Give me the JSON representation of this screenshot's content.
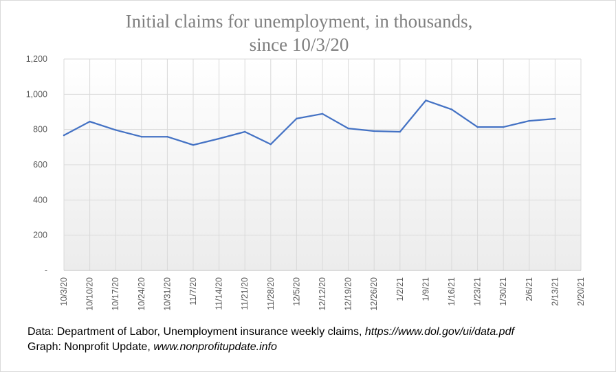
{
  "chart_data": {
    "type": "line",
    "title": "Initial claims for unemployment, in thousands,",
    "subtitle": "since 10/3/20",
    "xlabel": "",
    "ylabel": "",
    "ylim": [
      0,
      1200
    ],
    "yticks": [
      0,
      200,
      400,
      600,
      800,
      1000,
      1200
    ],
    "ytick_labels": [
      "-",
      "200",
      "400",
      "600",
      "800",
      "1,000",
      "1,200"
    ],
    "categories": [
      "10/3/20",
      "10/10/20",
      "10/17/20",
      "10/24/20",
      "10/31/20",
      "11/7/20",
      "11/14/20",
      "11/21/20",
      "11/28/20",
      "12/5/20",
      "12/12/20",
      "12/19/20",
      "12/26/20",
      "1/2/21",
      "1/9/21",
      "1/16/21",
      "1/23/21",
      "1/30/21",
      "2/6/21",
      "2/13/21",
      "2/20/21"
    ],
    "series": [
      {
        "name": "",
        "color": "#4472c4",
        "values": [
          767,
          845,
          797,
          759,
          759,
          712,
          748,
          787,
          716,
          862,
          889,
          806,
          791,
          787,
          965,
          914,
          814,
          814,
          849,
          861,
          null
        ]
      }
    ],
    "grid": true,
    "legend": "none"
  },
  "source": {
    "line1_prefix": "Data: Department of Labor, Unemployment insurance weekly claims, ",
    "line1_url": "https://www.dol.gov/ui/data.pdf",
    "line2_prefix": "Graph:  Nonprofit Update, ",
    "line2_url": "www.nonprofitupdate.info"
  }
}
